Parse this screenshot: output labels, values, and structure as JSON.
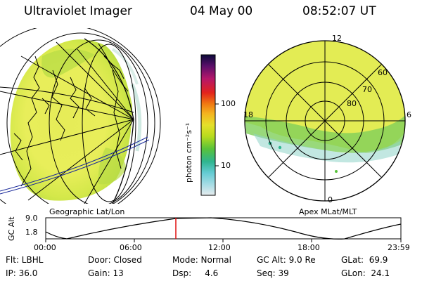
{
  "header": {
    "instrument": "Ultraviolet Imager",
    "date": "04 May 00",
    "time": "08:52:07 UT"
  },
  "left_panel": {
    "caption": "Geographic Lat/Lon"
  },
  "right_panel": {
    "caption": "Apex MLat/MLT",
    "mlt_labels": {
      "top": "12",
      "left": "18",
      "right": "6",
      "bottom": "0"
    },
    "lat_labels": [
      "60",
      "70",
      "80"
    ]
  },
  "colorbar": {
    "unit_label": "photon cm⁻²s⁻¹",
    "tick_labels": [
      "100",
      "10"
    ],
    "colors": [
      "#0a0a3a",
      "#5a0f6a",
      "#b5176a",
      "#e3231c",
      "#f07a12",
      "#f4b520",
      "#e5e02a",
      "#b8dc1e",
      "#58c23a",
      "#2fb58f",
      "#64cbd3",
      "#a4dbe4",
      "#e6ecee"
    ]
  },
  "altitude_plot": {
    "axis_label": "GC Alt",
    "y_ticks": [
      "9.0",
      "1.8"
    ],
    "x_ticks": [
      "00:00",
      "06:00",
      "12:00",
      "18:00",
      "23:59"
    ]
  },
  "info": {
    "filter": "Flt: LBHL",
    "door": "Door: Closed",
    "mode": "Mode: Normal",
    "gc_alt": "GC Alt: 9.0 Re",
    "glat": "GLat:  69.9",
    "ip": "IP: 36.0",
    "gain": "Gain: 13",
    "dsp": "Dsp:     4.6",
    "seq": "Seq: 39",
    "glon": "GLon:  24.1"
  },
  "colors": {
    "aurora_green": "#b8e04a",
    "aurora_yellow": "#e8ee5a",
    "cursor_red": "#e01010"
  }
}
